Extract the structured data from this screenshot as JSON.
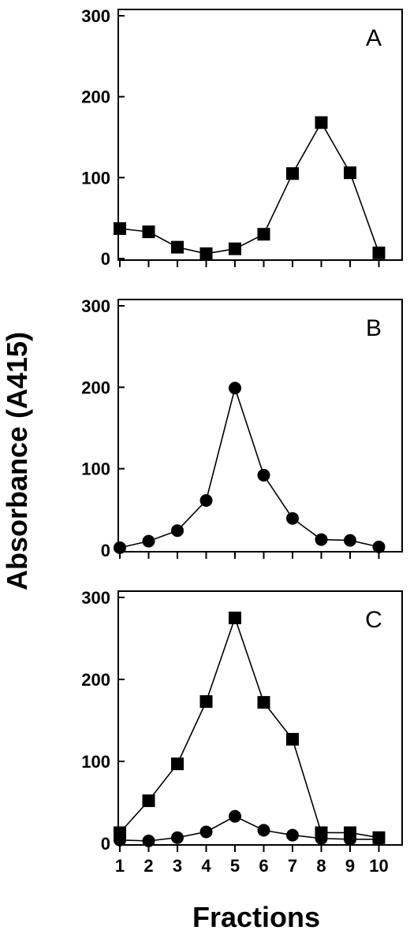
{
  "chart_data": {
    "type": "line",
    "ylabel": "Absorbance (A415)",
    "xlabel": "Fractions",
    "x_tick_labels": [
      "1",
      "2",
      "3",
      "4",
      "5",
      "6",
      "7",
      "8",
      "9",
      "10"
    ],
    "y_tick_labels": [
      "0",
      "100",
      "200",
      "300"
    ],
    "ylim": [
      0,
      300
    ],
    "xlim": [
      1,
      10
    ],
    "grid": false,
    "legend": "none",
    "panels": [
      {
        "letter": "A",
        "series": [
          {
            "marker": "square",
            "points": [
              [
                1,
                37
              ],
              [
                2,
                33
              ],
              [
                3,
                14
              ],
              [
                4,
                6
              ],
              [
                5,
                12
              ],
              [
                6,
                30
              ],
              [
                7,
                105
              ],
              [
                8,
                168
              ],
              [
                9,
                106
              ],
              [
                10,
                7
              ]
            ]
          }
        ]
      },
      {
        "letter": "B",
        "series": [
          {
            "marker": "circle",
            "points": [
              [
                1,
                3
              ],
              [
                2,
                11
              ],
              [
                3,
                24
              ],
              [
                4,
                61
              ],
              [
                5,
                199
              ],
              [
                6,
                92
              ],
              [
                7,
                39
              ],
              [
                8,
                13
              ],
              [
                9,
                12
              ],
              [
                10,
                4
              ]
            ]
          }
        ]
      },
      {
        "letter": "C",
        "series": [
          {
            "marker": "square",
            "points": [
              [
                1,
                13
              ],
              [
                2,
                52
              ],
              [
                3,
                97
              ],
              [
                4,
                173
              ],
              [
                5,
                275
              ],
              [
                6,
                172
              ],
              [
                7,
                127
              ],
              [
                8,
                13
              ],
              [
                9,
                13
              ],
              [
                10,
                7
              ]
            ]
          },
          {
            "marker": "circle",
            "points": [
              [
                1,
                4
              ],
              [
                2,
                3
              ],
              [
                3,
                7
              ],
              [
                4,
                14
              ],
              [
                5,
                33
              ],
              [
                6,
                16
              ],
              [
                7,
                10
              ],
              [
                8,
                6
              ],
              [
                9,
                5
              ],
              [
                10,
                5
              ]
            ]
          }
        ]
      }
    ]
  }
}
